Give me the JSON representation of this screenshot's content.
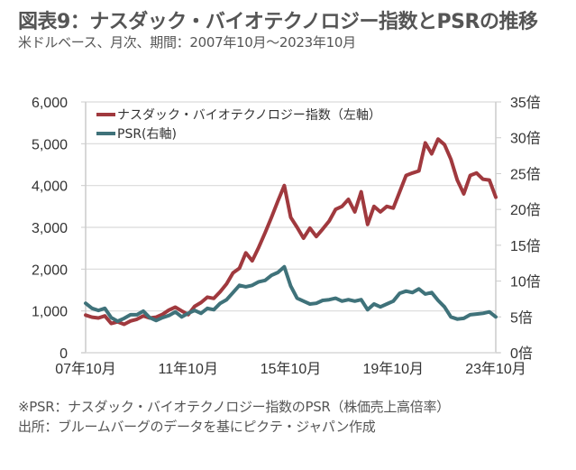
{
  "header": {
    "title": "図表9：ナスダック・バイオテクノロジー指数とPSRの推移",
    "subtitle": "米ドルベース、月次、期間：2007年10月～2023年10月"
  },
  "footer": {
    "note": "※PSR：ナスダック・バイオテクノロジー指数のPSR（株価売上高倍率）",
    "source": "出所：ブルームバーグのデータを基にピクテ・ジャパン作成"
  },
  "chart_data": {
    "type": "line",
    "title": "ナスダック・バイオテクノロジー指数とPSRの推移",
    "xlabel": "",
    "ylabel_left": "",
    "ylabel_right": "",
    "x_tick_labels": [
      "07年10月",
      "11年10月",
      "15年10月",
      "19年10月",
      "23年10月"
    ],
    "x_tick_index": [
      0,
      16,
      32,
      48,
      64
    ],
    "y_left": {
      "min": 0,
      "max": 6000,
      "ticks": [
        0,
        1000,
        2000,
        3000,
        4000,
        5000,
        6000
      ],
      "tick_labels": [
        "0",
        "1,000",
        "2,000",
        "3,000",
        "4,000",
        "5,000",
        "6,000"
      ]
    },
    "y_right": {
      "min": 0,
      "max": 35,
      "ticks": [
        0,
        5,
        10,
        15,
        20,
        25,
        30,
        35
      ],
      "tick_labels": [
        "0倍",
        "5倍",
        "10倍",
        "15倍",
        "20倍",
        "25倍",
        "30倍",
        "35倍"
      ]
    },
    "grid": true,
    "legend_position": "top-left",
    "x": [
      "2007-10",
      "2008-01",
      "2008-04",
      "2008-07",
      "2008-10",
      "2009-01",
      "2009-04",
      "2009-07",
      "2009-10",
      "2010-01",
      "2010-04",
      "2010-07",
      "2010-10",
      "2011-01",
      "2011-04",
      "2011-07",
      "2011-10",
      "2012-01",
      "2012-04",
      "2012-07",
      "2012-10",
      "2013-01",
      "2013-04",
      "2013-07",
      "2013-10",
      "2014-01",
      "2014-04",
      "2014-07",
      "2014-10",
      "2015-01",
      "2015-04",
      "2015-07",
      "2015-10",
      "2016-01",
      "2016-04",
      "2016-07",
      "2016-10",
      "2017-01",
      "2017-04",
      "2017-07",
      "2017-10",
      "2018-01",
      "2018-04",
      "2018-07",
      "2018-10",
      "2019-01",
      "2019-04",
      "2019-07",
      "2019-10",
      "2020-01",
      "2020-04",
      "2020-07",
      "2020-10",
      "2021-01",
      "2021-04",
      "2021-07",
      "2021-10",
      "2022-01",
      "2022-04",
      "2022-07",
      "2022-10",
      "2023-01",
      "2023-04",
      "2023-07",
      "2023-10"
    ],
    "series": [
      {
        "name": "ナスダック・バイオテクノロジー指数（左軸）",
        "axis": "left",
        "color": "#A0393E",
        "values": [
          900,
          850,
          830,
          880,
          700,
          740,
          680,
          760,
          800,
          880,
          830,
          850,
          920,
          1020,
          1090,
          1000,
          910,
          1110,
          1200,
          1330,
          1300,
          1460,
          1650,
          1910,
          2020,
          2390,
          2200,
          2520,
          2870,
          3240,
          3630,
          4000,
          3240,
          3000,
          2740,
          2980,
          2780,
          2960,
          3150,
          3430,
          3500,
          3670,
          3370,
          3850,
          3070,
          3500,
          3370,
          3500,
          3460,
          3850,
          4240,
          4300,
          4350,
          5020,
          4760,
          5110,
          4980,
          4630,
          4130,
          3800,
          4240,
          4300,
          4150,
          4130,
          3720
        ]
      },
      {
        "name": "PSR(右軸)",
        "axis": "right",
        "color": "#3F727A",
        "values": [
          6.9,
          6.2,
          5.9,
          6.2,
          4.9,
          4.4,
          4.8,
          5.3,
          5.3,
          5.8,
          4.9,
          4.5,
          4.9,
          5.2,
          5.7,
          5.0,
          5.5,
          5.9,
          5.5,
          6.2,
          6.0,
          6.9,
          7.4,
          8.4,
          9.4,
          9.2,
          9.4,
          9.9,
          10.1,
          10.8,
          11.2,
          12.0,
          9.3,
          7.6,
          7.2,
          6.8,
          6.9,
          7.3,
          7.4,
          7.6,
          7.2,
          7.4,
          7.2,
          7.4,
          6.0,
          6.8,
          6.4,
          6.8,
          7.2,
          8.3,
          8.6,
          8.4,
          8.9,
          8.2,
          8.4,
          7.3,
          6.4,
          5.0,
          4.7,
          4.8,
          5.3,
          5.4,
          5.5,
          5.7,
          5.0
        ]
      }
    ]
  }
}
